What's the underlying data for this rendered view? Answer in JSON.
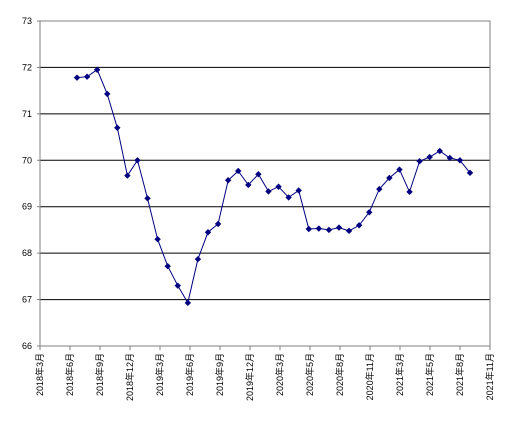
{
  "chart_data": {
    "type": "line",
    "title": "",
    "xlabel": "",
    "ylabel": "",
    "ylim": [
      66,
      73
    ],
    "yticks": [
      "66",
      "67",
      "68",
      "69",
      "70",
      "71",
      "72",
      "73"
    ],
    "xticks": [
      "2018年3月",
      "2018年6月",
      "2018年9月",
      "2018年12月",
      "2019年3月",
      "2019年6月",
      "2019年9月",
      "2019年12月",
      "2020年3月",
      "2020年5月",
      "2020年8月",
      "2020年11月",
      "2021年3月",
      "2021年5月",
      "2021年8月",
      "2021年11月"
    ],
    "grid": "horizontal",
    "legend": "none",
    "series_color": "#000080",
    "series": [
      {
        "values": [
          71.78,
          71.8,
          71.95,
          71.43,
          70.7,
          69.67,
          70.0,
          69.18,
          68.3,
          67.72,
          67.3,
          66.93,
          67.87,
          68.45,
          68.63,
          69.57,
          69.77,
          69.47,
          69.7,
          69.33,
          69.43,
          69.2,
          69.35,
          68.52,
          68.53,
          68.5,
          68.55,
          68.48,
          68.6,
          68.88,
          69.38,
          69.62,
          69.8,
          69.32,
          69.98,
          70.07,
          70.2,
          70.05,
          70.0,
          69.73
        ]
      }
    ]
  }
}
